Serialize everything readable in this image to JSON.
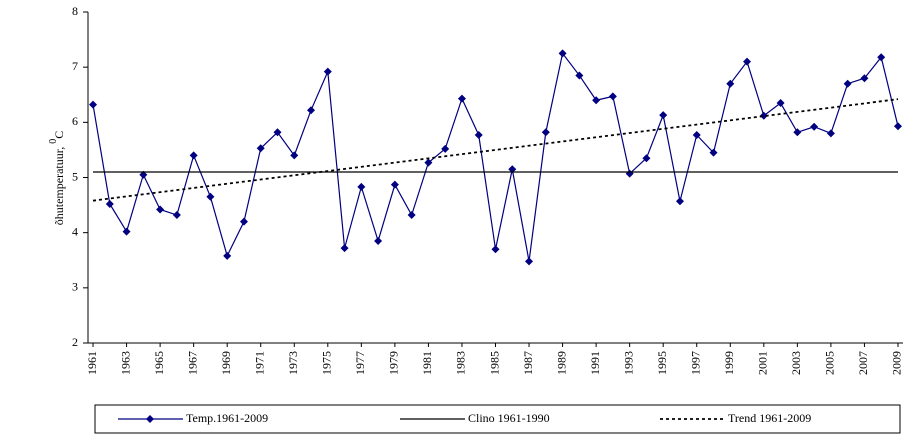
{
  "chart_data": {
    "type": "line",
    "ylabel": "õhutemperatuur, ",
    "ylabel_sup": "0",
    "ylabel_unit": "C",
    "xlim": [
      1960.7,
      2009.3
    ],
    "xticks": [
      1961,
      1963,
      1965,
      1967,
      1969,
      1971,
      1973,
      1975,
      1977,
      1979,
      1981,
      1983,
      1985,
      1987,
      1989,
      1991,
      1993,
      1995,
      1997,
      1999,
      2001,
      2003,
      2005,
      2007,
      2009
    ],
    "ylim": [
      2,
      8
    ],
    "yticks": [
      2,
      3,
      4,
      5,
      6,
      7,
      8
    ],
    "grid": false,
    "legend": "bottom",
    "series": [
      {
        "name": "Temp.1961-2009",
        "color": "#000080",
        "style": "solid",
        "marker": "diamond",
        "x": [
          1961,
          1962,
          1963,
          1964,
          1965,
          1966,
          1967,
          1968,
          1969,
          1970,
          1971,
          1972,
          1973,
          1974,
          1975,
          1976,
          1977,
          1978,
          1979,
          1980,
          1981,
          1982,
          1983,
          1984,
          1985,
          1986,
          1987,
          1988,
          1989,
          1990,
          1991,
          1992,
          1993,
          1994,
          1995,
          1996,
          1997,
          1998,
          1999,
          2000,
          2001,
          2002,
          2003,
          2004,
          2005,
          2006,
          2007,
          2008,
          2009
        ],
        "values": [
          6.32,
          4.52,
          4.02,
          5.05,
          4.42,
          4.32,
          5.4,
          4.65,
          3.58,
          4.2,
          5.53,
          5.82,
          5.4,
          6.22,
          6.92,
          3.72,
          4.83,
          3.85,
          4.87,
          4.32,
          5.27,
          5.52,
          6.43,
          5.77,
          3.7,
          5.15,
          3.48,
          5.82,
          7.25,
          6.85,
          6.4,
          6.47,
          5.07,
          5.35,
          6.13,
          4.57,
          5.77,
          5.45,
          6.7,
          7.1,
          6.12,
          6.35,
          5.82,
          5.92,
          5.8,
          6.7,
          6.8,
          7.18,
          5.93
        ]
      },
      {
        "name": "Clino 1961-1990",
        "color": "#000000",
        "style": "solid",
        "x": [
          1961,
          2009
        ],
        "values": [
          5.1,
          5.1
        ]
      },
      {
        "name": "Trend 1961-2009",
        "color": "#000000",
        "style": "dashed",
        "x": [
          1961,
          2009
        ],
        "values": [
          4.58,
          6.42
        ]
      }
    ]
  }
}
